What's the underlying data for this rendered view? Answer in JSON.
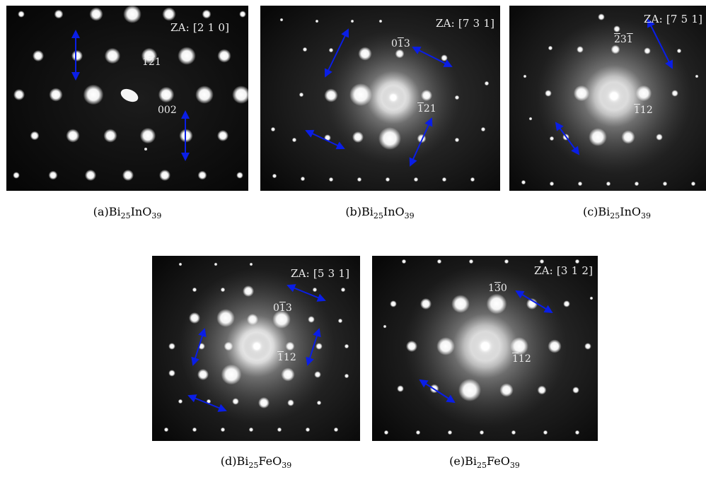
{
  "panels": [
    {
      "zone_axis": "ZA: [2 1 0]",
      "index_labels": [
        {
          "pre": "1",
          "bar": "2",
          "post": "1"
        },
        {
          "pre": "002",
          "bar": "",
          "post": ""
        }
      ],
      "caption": {
        "prefix": "(a)Bi",
        "s1": "25",
        "mid": "InO",
        "s2": "39"
      }
    },
    {
      "zone_axis": "ZA: [7 3 1]",
      "index_labels": [
        {
          "pre": "0",
          "bar": "1",
          "post": "3"
        },
        {
          "pre": "",
          "bar": "1",
          "post": "21"
        }
      ],
      "caption": {
        "prefix": "(b)Bi",
        "s1": "25",
        "mid": "InO",
        "s2": "39"
      }
    },
    {
      "zone_axis": "ZA: [7 5 1]",
      "index_labels": [
        {
          "pre": "",
          "bar": "2",
          "post": "3",
          "bar2": "1"
        },
        {
          "pre": "",
          "bar": "1",
          "post": "12"
        }
      ],
      "caption": {
        "prefix": "(c)Bi",
        "s1": "25",
        "mid": "InO",
        "s2": "39"
      }
    },
    {
      "zone_axis": "ZA: [5 3 1]",
      "index_labels": [
        {
          "pre": "0",
          "bar": "1",
          "post": "3"
        },
        {
          "pre": "",
          "bar": "1",
          "post": "12"
        }
      ],
      "caption": {
        "prefix": "(d)Bi",
        "s1": "25",
        "mid": "FeO",
        "s2": "39"
      }
    },
    {
      "zone_axis": "ZA: [3 1 2]",
      "index_labels": [
        {
          "pre": "1",
          "bar": "3",
          "post": "0"
        },
        {
          "pre": "",
          "bar": "1",
          "post": "12"
        }
      ],
      "caption": {
        "prefix": "(e)Bi",
        "s1": "25",
        "mid": "FeO",
        "s2": "39"
      }
    }
  ],
  "colors": {
    "arrow": "#0a1ee6",
    "spot": "#ffffff",
    "background": "#000000"
  }
}
